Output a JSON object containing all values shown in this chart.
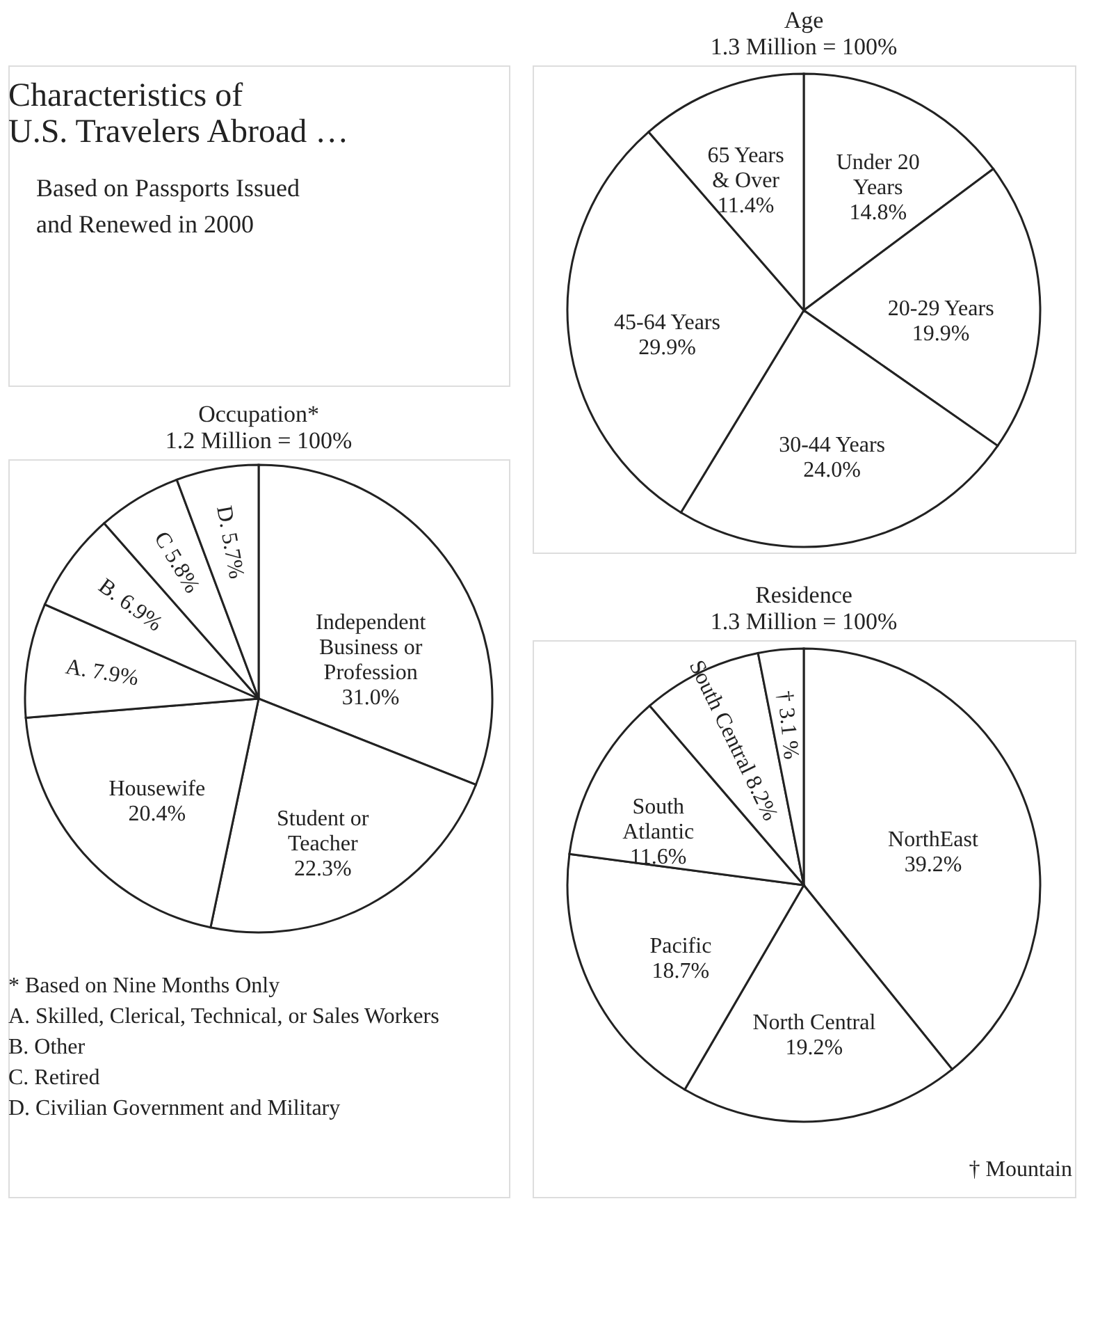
{
  "chart_data": [
    {
      "type": "other",
      "title": "Characteristics of\nU.S. Travelers Abroad …",
      "subtitle": "Based on Passports Issued\nand Renewed in 2000"
    },
    {
      "type": "pie",
      "title": "Age",
      "subtitle": "1.3 Million = 100%",
      "categories": [
        "Under 20\nYears",
        "20-29 Years",
        "30-44 Years",
        "45-64 Years",
        "65 Years\n& Over"
      ],
      "values": [
        14.8,
        19.9,
        24.0,
        29.9,
        11.4
      ],
      "value_labels": [
        "14.8%",
        "19.9%",
        "24.0%",
        "29.9%",
        "11.4%"
      ],
      "colors": [
        "#ffffff",
        "#ffffff",
        "#ffffff",
        "#ffffff",
        "#ffffff"
      ]
    },
    {
      "type": "pie",
      "title": "Occupation*",
      "subtitle": "1.2 Million = 100%",
      "categories": [
        "Independent\nBusiness or\nProfession",
        "Student or\nTeacher",
        "Housewife",
        "A.",
        "B.",
        "C",
        "D."
      ],
      "values": [
        31.0,
        22.3,
        20.4,
        7.9,
        6.9,
        5.8,
        5.7
      ],
      "value_labels": [
        "31.0%",
        "22.3%",
        "20.4%",
        "7.9%",
        "6.9%",
        "5.8%",
        "5.7%"
      ],
      "colors": [
        "#ffffff",
        "#ffffff",
        "#ffffff",
        "#ffffff",
        "#ffffff",
        "#ffffff",
        "#ffffff"
      ],
      "annotations": [
        "* Based on Nine Months Only",
        "A. Skilled, Clerical, Technical, or Sales Workers",
        "B. Other",
        "C. Retired",
        "D. Civilian Government and Military"
      ]
    },
    {
      "type": "pie",
      "title": "Residence",
      "subtitle": "1.3 Million = 100%",
      "categories": [
        "NorthEast",
        "North Central",
        "Pacific",
        "South\nAtlantic",
        "South\nCentral",
        "†"
      ],
      "values": [
        39.2,
        19.2,
        18.7,
        11.6,
        8.2,
        3.1
      ],
      "value_labels": [
        "39.2%",
        "19.2%",
        "18.7%",
        "11.6%",
        "8.2%",
        "3.1 %"
      ],
      "colors": [
        "#ffffff",
        "#ffffff",
        "#ffffff",
        "#ffffff",
        "#ffffff",
        "#ffffff"
      ],
      "annotations": [
        "† Mountain"
      ]
    }
  ]
}
